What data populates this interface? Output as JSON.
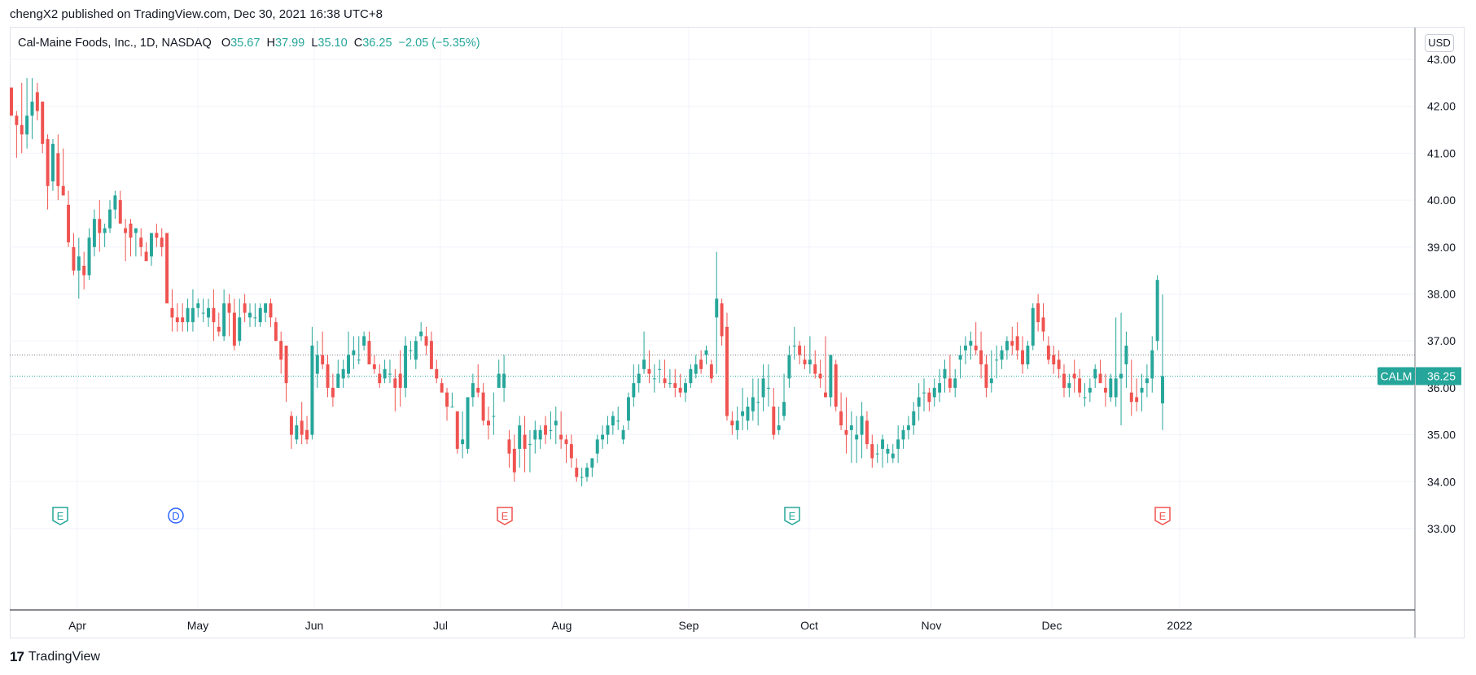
{
  "header": {
    "publish_caption": "chengX2 published on TradingView.com, Dec 30, 2021 16:38 UTC+8"
  },
  "legend": {
    "symbol_text": "Cal-Maine Foods, Inc., 1D, NASDAQ",
    "open_label": "O",
    "open_value": "35.67",
    "high_label": "H",
    "high_value": "37.99",
    "low_label": "L",
    "low_value": "35.10",
    "close_label": "C",
    "close_value": "36.25",
    "change_text": "−2.05 (−5.35%)"
  },
  "currency_button": "USD",
  "price_label": {
    "ticker": "CALM",
    "value": "36.25"
  },
  "footer": {
    "brand": "TradingView",
    "logo_glyph": "17"
  },
  "colors": {
    "up": "#26a69a",
    "down": "#ef5350",
    "event_dividend": "#2962ff"
  },
  "icons": {
    "logo": "tradingview-logo-icon"
  },
  "chart_data": {
    "type": "candlestick",
    "symbol": "CALM",
    "exchange": "NASDAQ",
    "interval": "1D",
    "ylim": [
      33.0,
      43.0
    ],
    "y_ticks": [
      "43.00",
      "42.00",
      "41.00",
      "40.00",
      "39.00",
      "38.00",
      "37.00",
      "36.00",
      "35.00",
      "34.00",
      "33.00"
    ],
    "x_ticks": [
      "Apr",
      "May",
      "Jun",
      "Jul",
      "Aug",
      "Sep",
      "Oct",
      "Nov",
      "Dec",
      "2022"
    ],
    "last_price": 36.25,
    "reference_price": 36.7,
    "grid": true,
    "events": [
      {
        "type": "E",
        "month": "Apr",
        "color": "#26a69a"
      },
      {
        "type": "D",
        "month": "May",
        "color": "#2962ff"
      },
      {
        "type": "E",
        "month": "Jul",
        "color": "#ef5350"
      },
      {
        "type": "E",
        "month": "Oct",
        "color": "#26a69a"
      },
      {
        "type": "E",
        "month": "Jan",
        "color": "#ef5350"
      }
    ],
    "candles": [
      [
        42.4,
        42.4,
        41.8,
        41.8
      ],
      [
        41.8,
        41.9,
        40.9,
        41.6
      ],
      [
        41.6,
        42.5,
        41.0,
        41.4
      ],
      [
        41.4,
        42.6,
        41.1,
        41.8
      ],
      [
        41.8,
        42.6,
        41.3,
        42.1
      ],
      [
        42.3,
        42.5,
        41.7,
        41.9
      ],
      [
        42.1,
        42.1,
        41.0,
        41.2
      ],
      [
        41.3,
        41.4,
        39.8,
        40.3
      ],
      [
        40.4,
        41.3,
        40.2,
        41.2
      ],
      [
        41.0,
        41.4,
        40.0,
        40.3
      ],
      [
        40.3,
        41.1,
        40.1,
        40.1
      ],
      [
        39.9,
        40.2,
        39.0,
        39.1
      ],
      [
        39.0,
        39.3,
        38.4,
        38.5
      ],
      [
        38.5,
        39.2,
        37.9,
        38.8
      ],
      [
        38.6,
        38.9,
        38.1,
        38.4
      ],
      [
        38.4,
        39.4,
        38.3,
        39.2
      ],
      [
        39.0,
        39.8,
        38.8,
        39.6
      ],
      [
        39.6,
        40.0,
        38.9,
        39.3
      ],
      [
        39.3,
        39.5,
        39.0,
        39.4
      ],
      [
        39.4,
        40.0,
        39.3,
        39.8
      ],
      [
        39.8,
        40.2,
        39.6,
        40.1
      ],
      [
        40.0,
        40.2,
        39.5,
        39.5
      ],
      [
        39.4,
        39.6,
        38.7,
        39.3
      ],
      [
        39.5,
        39.6,
        38.8,
        39.2
      ],
      [
        39.3,
        39.4,
        38.8,
        39.4
      ],
      [
        39.2,
        39.4,
        38.8,
        39.0
      ],
      [
        38.9,
        39.1,
        38.7,
        38.7
      ],
      [
        38.8,
        39.3,
        38.6,
        39.3
      ],
      [
        39.3,
        39.5,
        39.0,
        39.2
      ],
      [
        39.2,
        39.4,
        38.8,
        39.0
      ],
      [
        39.3,
        39.3,
        37.8,
        37.8
      ],
      [
        37.7,
        38.1,
        37.2,
        37.5
      ],
      [
        37.5,
        37.8,
        37.2,
        37.4
      ],
      [
        37.5,
        37.8,
        37.2,
        37.4
      ],
      [
        37.4,
        37.9,
        37.2,
        37.7
      ],
      [
        37.4,
        38.1,
        37.2,
        37.7
      ],
      [
        37.7,
        37.9,
        37.5,
        37.8
      ],
      [
        37.6,
        37.9,
        37.4,
        37.6
      ],
      [
        37.5,
        37.9,
        37.3,
        37.7
      ],
      [
        37.7,
        38.1,
        37.0,
        37.4
      ],
      [
        37.3,
        37.6,
        37.1,
        37.2
      ],
      [
        37.1,
        38.1,
        37.0,
        37.8
      ],
      [
        37.8,
        38.0,
        37.1,
        37.6
      ],
      [
        37.6,
        37.9,
        36.8,
        36.9
      ],
      [
        37.0,
        37.9,
        36.9,
        37.5
      ],
      [
        37.8,
        38.0,
        37.4,
        37.6
      ],
      [
        37.5,
        37.8,
        37.3,
        37.6
      ],
      [
        37.5,
        37.8,
        37.3,
        37.5
      ],
      [
        37.4,
        37.8,
        37.3,
        37.7
      ],
      [
        37.6,
        37.8,
        37.4,
        37.8
      ],
      [
        37.8,
        37.9,
        37.3,
        37.5
      ],
      [
        37.4,
        37.5,
        37.0,
        37.0
      ],
      [
        37.0,
        37.2,
        36.3,
        36.6
      ],
      [
        36.9,
        36.9,
        35.7,
        36.1
      ],
      [
        35.4,
        35.5,
        34.7,
        35.0
      ],
      [
        34.9,
        35.4,
        34.8,
        35.2
      ],
      [
        35.3,
        35.7,
        34.8,
        35.0
      ],
      [
        35.1,
        35.4,
        34.8,
        34.9
      ],
      [
        35.0,
        37.3,
        34.9,
        36.9
      ],
      [
        36.3,
        37.0,
        36.0,
        36.7
      ],
      [
        36.7,
        37.2,
        36.4,
        36.5
      ],
      [
        36.5,
        36.7,
        35.8,
        36.0
      ],
      [
        36.0,
        36.3,
        35.6,
        35.8
      ],
      [
        36.0,
        36.6,
        36.0,
        36.3
      ],
      [
        36.2,
        36.6,
        36.0,
        36.4
      ],
      [
        36.3,
        37.2,
        36.2,
        36.7
      ],
      [
        36.7,
        37.1,
        36.4,
        36.8
      ],
      [
        36.6,
        37.1,
        36.5,
        36.6
      ],
      [
        36.9,
        37.2,
        36.8,
        37.1
      ],
      [
        37.0,
        37.2,
        36.5,
        36.5
      ],
      [
        36.5,
        36.7,
        36.3,
        36.4
      ],
      [
        36.3,
        36.5,
        36.0,
        36.1
      ],
      [
        36.2,
        36.6,
        36.1,
        36.4
      ],
      [
        36.3,
        36.6,
        36.1,
        36.3
      ],
      [
        36.2,
        36.4,
        35.5,
        36.0
      ],
      [
        36.3,
        36.8,
        35.6,
        36.0
      ],
      [
        36.0,
        37.1,
        35.8,
        36.9
      ],
      [
        36.8,
        37.0,
        36.6,
        36.8
      ],
      [
        36.6,
        37.1,
        36.4,
        37.0
      ],
      [
        37.1,
        37.4,
        37.0,
        37.2
      ],
      [
        37.1,
        37.3,
        36.7,
        36.9
      ],
      [
        37.0,
        37.2,
        36.4,
        36.4
      ],
      [
        36.4,
        36.6,
        36.1,
        36.2
      ],
      [
        36.1,
        36.2,
        35.9,
        35.9
      ],
      [
        35.9,
        36.0,
        35.3,
        35.6
      ],
      [
        35.6,
        35.9,
        35.6,
        35.6
      ],
      [
        35.5,
        35.5,
        34.6,
        34.7
      ],
      [
        34.8,
        35.5,
        34.5,
        34.9
      ],
      [
        34.7,
        35.8,
        34.6,
        35.8
      ],
      [
        35.8,
        36.3,
        35.6,
        36.1
      ],
      [
        36.0,
        36.5,
        35.8,
        35.9
      ],
      [
        35.9,
        36.1,
        35.2,
        35.3
      ],
      [
        35.3,
        35.6,
        34.9,
        35.2
      ],
      [
        35.4,
        35.9,
        35.0,
        35.4
      ],
      [
        36.0,
        36.6,
        36.0,
        36.3
      ],
      [
        36.0,
        36.7,
        35.7,
        36.3
      ],
      [
        34.9,
        35.1,
        34.3,
        34.6
      ],
      [
        34.7,
        35.0,
        34.0,
        34.2
      ],
      [
        34.7,
        35.4,
        34.3,
        35.2
      ],
      [
        35.0,
        35.4,
        34.2,
        34.7
      ],
      [
        34.8,
        35.1,
        34.2,
        34.8
      ],
      [
        34.9,
        35.3,
        34.6,
        35.1
      ],
      [
        34.9,
        35.2,
        34.7,
        35.1
      ],
      [
        35.2,
        35.4,
        34.8,
        35.0
      ],
      [
        35.1,
        35.5,
        34.9,
        35.1
      ],
      [
        35.2,
        35.6,
        34.8,
        35.3
      ],
      [
        35.0,
        35.5,
        34.7,
        34.9
      ],
      [
        34.9,
        35.0,
        34.4,
        34.8
      ],
      [
        34.8,
        35.0,
        34.3,
        34.5
      ],
      [
        34.3,
        34.5,
        34.0,
        34.1
      ],
      [
        34.1,
        34.3,
        33.9,
        34.1
      ],
      [
        34.1,
        34.4,
        34.0,
        34.3
      ],
      [
        34.3,
        34.5,
        34.1,
        34.5
      ],
      [
        34.6,
        35.0,
        34.4,
        34.9
      ],
      [
        34.9,
        35.2,
        34.7,
        35.0
      ],
      [
        35.0,
        35.4,
        34.8,
        35.2
      ],
      [
        35.2,
        35.5,
        35.0,
        35.4
      ],
      [
        35.3,
        35.6,
        35.1,
        35.3
      ],
      [
        34.9,
        35.2,
        34.8,
        35.1
      ],
      [
        35.3,
        35.9,
        35.1,
        35.8
      ],
      [
        35.8,
        36.5,
        35.6,
        36.1
      ],
      [
        36.1,
        36.5,
        35.9,
        36.3
      ],
      [
        36.4,
        37.2,
        36.3,
        36.6
      ],
      [
        36.4,
        36.8,
        36.1,
        36.3
      ],
      [
        36.2,
        36.5,
        35.9,
        36.2
      ],
      [
        36.4,
        36.6,
        36.1,
        36.4
      ],
      [
        36.2,
        36.6,
        36.0,
        36.1
      ],
      [
        36.1,
        36.4,
        36.0,
        36.1
      ],
      [
        36.1,
        36.4,
        35.8,
        36.0
      ],
      [
        36.0,
        36.3,
        35.8,
        35.9
      ],
      [
        35.9,
        36.2,
        35.7,
        36.1
      ],
      [
        36.1,
        36.5,
        36.0,
        36.4
      ],
      [
        36.3,
        36.7,
        36.2,
        36.5
      ],
      [
        36.6,
        36.8,
        36.3,
        36.4
      ],
      [
        36.7,
        36.9,
        36.5,
        36.8
      ],
      [
        36.5,
        36.6,
        36.1,
        36.2
      ],
      [
        37.5,
        38.9,
        36.3,
        37.9
      ],
      [
        37.8,
        37.9,
        36.9,
        37.1
      ],
      [
        37.3,
        37.6,
        35.3,
        35.4
      ],
      [
        35.3,
        35.5,
        35.0,
        35.2
      ],
      [
        35.1,
        35.6,
        34.9,
        35.3
      ],
      [
        35.4,
        36.0,
        35.1,
        35.5
      ],
      [
        35.3,
        35.8,
        35.1,
        35.6
      ],
      [
        35.5,
        36.2,
        35.3,
        35.8
      ],
      [
        35.7,
        36.2,
        35.2,
        35.7
      ],
      [
        35.8,
        36.5,
        35.5,
        36.2
      ],
      [
        36.0,
        36.5,
        35.6,
        36.0
      ],
      [
        35.6,
        36.0,
        34.9,
        35.0
      ],
      [
        35.1,
        35.6,
        35.0,
        35.2
      ],
      [
        35.4,
        36.3,
        35.3,
        35.7
      ],
      [
        36.2,
        36.9,
        36.0,
        36.7
      ],
      [
        36.9,
        37.3,
        36.6,
        36.9
      ],
      [
        36.9,
        37.0,
        36.5,
        36.7
      ],
      [
        36.6,
        36.9,
        36.4,
        36.5
      ],
      [
        36.5,
        37.1,
        36.3,
        36.6
      ],
      [
        36.5,
        36.8,
        36.2,
        36.3
      ],
      [
        36.3,
        36.6,
        36.0,
        36.2
      ],
      [
        35.9,
        37.1,
        35.8,
        35.8
      ],
      [
        35.8,
        36.7,
        35.6,
        36.7
      ],
      [
        36.5,
        36.6,
        35.5,
        35.6
      ],
      [
        35.5,
        35.9,
        35.1,
        35.2
      ],
      [
        35.1,
        35.8,
        34.6,
        35.0
      ],
      [
        35.1,
        35.5,
        34.4,
        35.2
      ],
      [
        34.9,
        35.4,
        34.4,
        35.0
      ],
      [
        35.0,
        35.7,
        34.5,
        35.4
      ],
      [
        35.3,
        35.5,
        34.7,
        34.8
      ],
      [
        34.8,
        35.0,
        34.3,
        34.5
      ],
      [
        34.6,
        34.8,
        34.4,
        34.6
      ],
      [
        34.7,
        35.0,
        34.3,
        34.9
      ],
      [
        34.6,
        34.8,
        34.4,
        34.7
      ],
      [
        34.5,
        34.8,
        34.4,
        34.6
      ],
      [
        34.7,
        35.2,
        34.4,
        34.9
      ],
      [
        34.9,
        35.2,
        34.7,
        35.1
      ],
      [
        35.1,
        35.4,
        34.9,
        35.2
      ],
      [
        35.2,
        35.7,
        35.0,
        35.5
      ],
      [
        35.6,
        36.1,
        35.3,
        35.8
      ],
      [
        35.9,
        36.2,
        35.5,
        35.9
      ],
      [
        35.9,
        36.0,
        35.5,
        35.7
      ],
      [
        35.8,
        36.2,
        35.6,
        36.0
      ],
      [
        35.9,
        36.4,
        35.7,
        36.1
      ],
      [
        36.2,
        36.6,
        35.9,
        36.4
      ],
      [
        36.2,
        36.7,
        35.9,
        36.0
      ],
      [
        36.0,
        36.4,
        35.8,
        36.2
      ],
      [
        36.6,
        36.9,
        36.2,
        36.7
      ],
      [
        36.8,
        37.1,
        36.5,
        36.9
      ],
      [
        36.9,
        37.2,
        36.6,
        37.0
      ],
      [
        36.9,
        37.4,
        36.7,
        36.8
      ],
      [
        36.8,
        37.2,
        36.2,
        36.5
      ],
      [
        36.5,
        36.7,
        35.8,
        36.0
      ],
      [
        36.1,
        36.8,
        35.9,
        36.2
      ],
      [
        36.6,
        36.9,
        36.2,
        36.6
      ],
      [
        36.6,
        36.9,
        36.4,
        36.8
      ],
      [
        36.8,
        37.1,
        36.6,
        37.0
      ],
      [
        37.0,
        37.3,
        36.7,
        36.9
      ],
      [
        37.1,
        37.4,
        36.6,
        36.8
      ],
      [
        36.8,
        37.1,
        36.3,
        36.5
      ],
      [
        36.5,
        37.0,
        36.4,
        36.9
      ],
      [
        36.9,
        37.8,
        36.8,
        37.7
      ],
      [
        37.8,
        38.0,
        37.2,
        37.4
      ],
      [
        37.5,
        37.8,
        37.0,
        37.2
      ],
      [
        36.9,
        37.1,
        36.5,
        36.6
      ],
      [
        36.7,
        36.9,
        36.3,
        36.5
      ],
      [
        36.6,
        36.8,
        36.2,
        36.4
      ],
      [
        36.3,
        36.5,
        35.8,
        36.0
      ],
      [
        36.0,
        36.3,
        35.8,
        36.1
      ],
      [
        36.3,
        36.6,
        35.9,
        36.2
      ],
      [
        36.2,
        36.4,
        35.8,
        35.9
      ],
      [
        35.8,
        36.1,
        35.6,
        35.8
      ],
      [
        35.9,
        36.2,
        35.7,
        36.0
      ],
      [
        36.2,
        36.5,
        36.0,
        36.4
      ],
      [
        36.3,
        36.6,
        36.1,
        36.1
      ],
      [
        36.0,
        36.3,
        35.6,
        35.9
      ],
      [
        35.8,
        36.3,
        35.7,
        36.2
      ],
      [
        35.8,
        37.5,
        35.6,
        36.2
      ],
      [
        36.2,
        37.6,
        35.2,
        36.3
      ],
      [
        36.5,
        37.2,
        36.0,
        36.9
      ],
      [
        35.9,
        36.6,
        35.4,
        35.7
      ],
      [
        35.8,
        36.2,
        35.5,
        35.7
      ],
      [
        35.9,
        36.3,
        35.5,
        36.0
      ],
      [
        36.1,
        36.5,
        35.8,
        36.2
      ],
      [
        36.2,
        37.1,
        35.9,
        36.8
      ],
      [
        37.0,
        38.4,
        36.8,
        38.3
      ],
      [
        35.67,
        37.99,
        35.1,
        36.25
      ]
    ]
  }
}
